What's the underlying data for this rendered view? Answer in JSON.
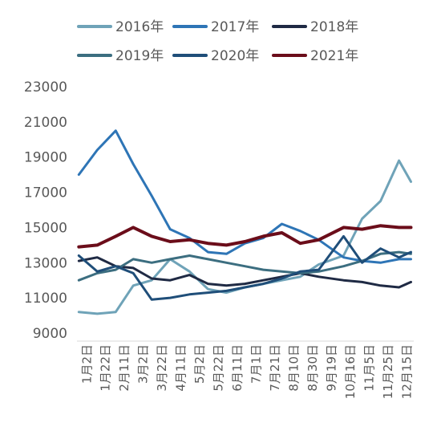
{
  "chart_data": {
    "type": "line",
    "title": "",
    "xlabel": "",
    "ylabel": "",
    "ylim": [
      9000,
      23000
    ],
    "yticks": [
      9000,
      11000,
      13000,
      15000,
      17000,
      19000,
      21000,
      23000
    ],
    "xticks": [
      "1月2日",
      "1月22日",
      "2月11日",
      "3月2日",
      "3月22日",
      "4月11日",
      "5月2日",
      "5月22日",
      "6月11日",
      "7月1日",
      "7月21日",
      "8月10日",
      "8月30日",
      "9月19日",
      "10月16日",
      "11月5日",
      "11月25日",
      "12月15日"
    ],
    "grid": false,
    "legend_position": "top",
    "x": [
      2,
      22,
      42,
      61,
      81,
      101,
      122,
      142,
      162,
      182,
      202,
      222,
      242,
      262,
      289,
      309,
      329,
      349,
      362
    ],
    "series": [
      {
        "name": "2016年",
        "color": "#6fa3b8",
        "values": [
          10200,
          10100,
          10200,
          11700,
          12000,
          13200,
          12500,
          11500,
          11300,
          11600,
          11800,
          12000,
          12200,
          12900,
          13400,
          15500,
          16500,
          18800,
          17600
        ]
      },
      {
        "name": "2017年",
        "color": "#2e75b6",
        "values": [
          18000,
          19400,
          20500,
          18600,
          16800,
          14900,
          14400,
          13600,
          13500,
          14100,
          14400,
          15200,
          14800,
          14300,
          13300,
          13100,
          13000,
          13200,
          13200
        ]
      },
      {
        "name": "2018年",
        "color": "#1f2a44",
        "values": [
          13100,
          13300,
          12800,
          12700,
          12100,
          12000,
          12300,
          11800,
          11700,
          11800,
          12000,
          12200,
          12400,
          12200,
          12000,
          11900,
          11700,
          11600,
          11900
        ]
      },
      {
        "name": "2019年",
        "color": "#3c6e80",
        "values": [
          12000,
          12400,
          12600,
          13200,
          13000,
          13200,
          13400,
          13200,
          13000,
          12800,
          12600,
          12500,
          12400,
          12500,
          12800,
          13100,
          13500,
          13600,
          13500
        ]
      },
      {
        "name": "2020年",
        "color": "#1f4e79",
        "values": [
          13400,
          12500,
          12800,
          12400,
          10900,
          11000,
          11200,
          11300,
          11400,
          11600,
          11800,
          12100,
          12500,
          12600,
          14500,
          13000,
          13800,
          13300,
          13600
        ]
      },
      {
        "name": "2021年",
        "color": "#6b0d1a",
        "values": [
          13900,
          14000,
          14500,
          15000,
          14500,
          14200,
          14300,
          14100,
          14000,
          14200,
          14500,
          14700,
          14100,
          14300,
          15000,
          14900,
          15100,
          15000,
          15000
        ]
      }
    ]
  }
}
